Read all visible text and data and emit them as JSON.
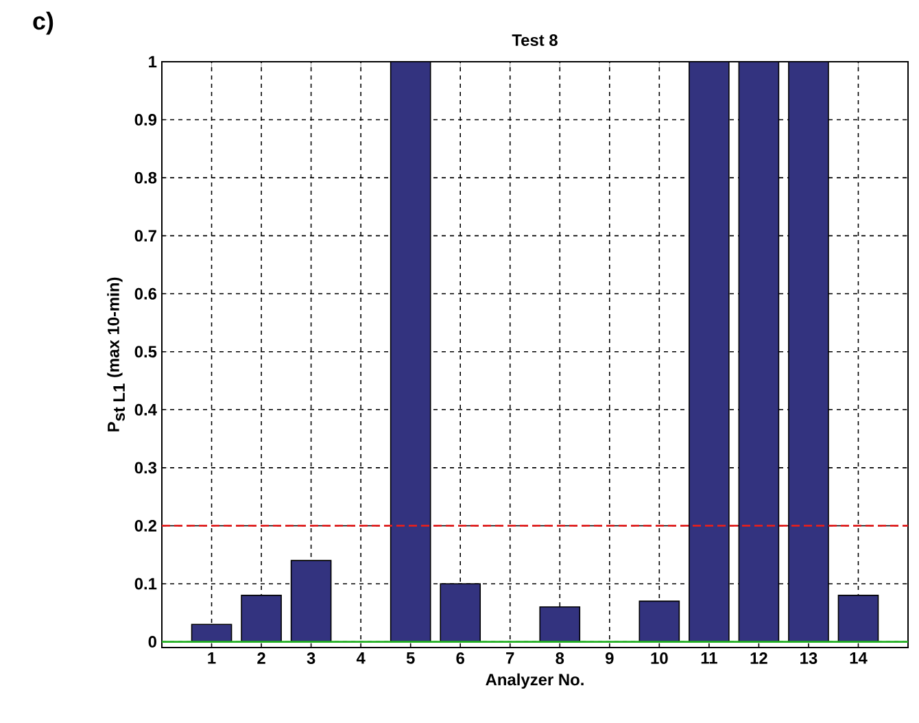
{
  "chart_data": {
    "type": "bar",
    "title": "Test 8",
    "xlabel": "Analyzer No.",
    "ylabel": "\\textbf{P}_{\\textbf{st L1}}\\ \\textbf{(max 10-min)}",
    "annotations": [
      "c)"
    ],
    "categories": [
      "1",
      "2",
      "3",
      "4",
      "5",
      "6",
      "7",
      "8",
      "9",
      "10",
      "11",
      "12",
      "13",
      "14"
    ],
    "values": [
      0.03,
      0.08,
      0.14,
      0,
      1,
      0.1,
      0,
      0.06,
      0,
      0.07,
      1,
      1,
      1,
      0.08
    ],
    "color": "#33337f",
    "ylim": [
      -0.01,
      1
    ],
    "yticks": [
      0,
      0.1,
      0.2,
      0.3,
      0.4,
      0.5,
      0.6,
      0.7,
      0.8,
      0.9,
      1
    ],
    "grid": true,
    "ref_lines": [
      {
        "axis": "y",
        "value": 0.2,
        "color": "#e02020",
        "line_style": "dashed"
      },
      {
        "axis": "y",
        "value": 0,
        "color": "#20b020",
        "line_style": "solid"
      }
    ]
  }
}
